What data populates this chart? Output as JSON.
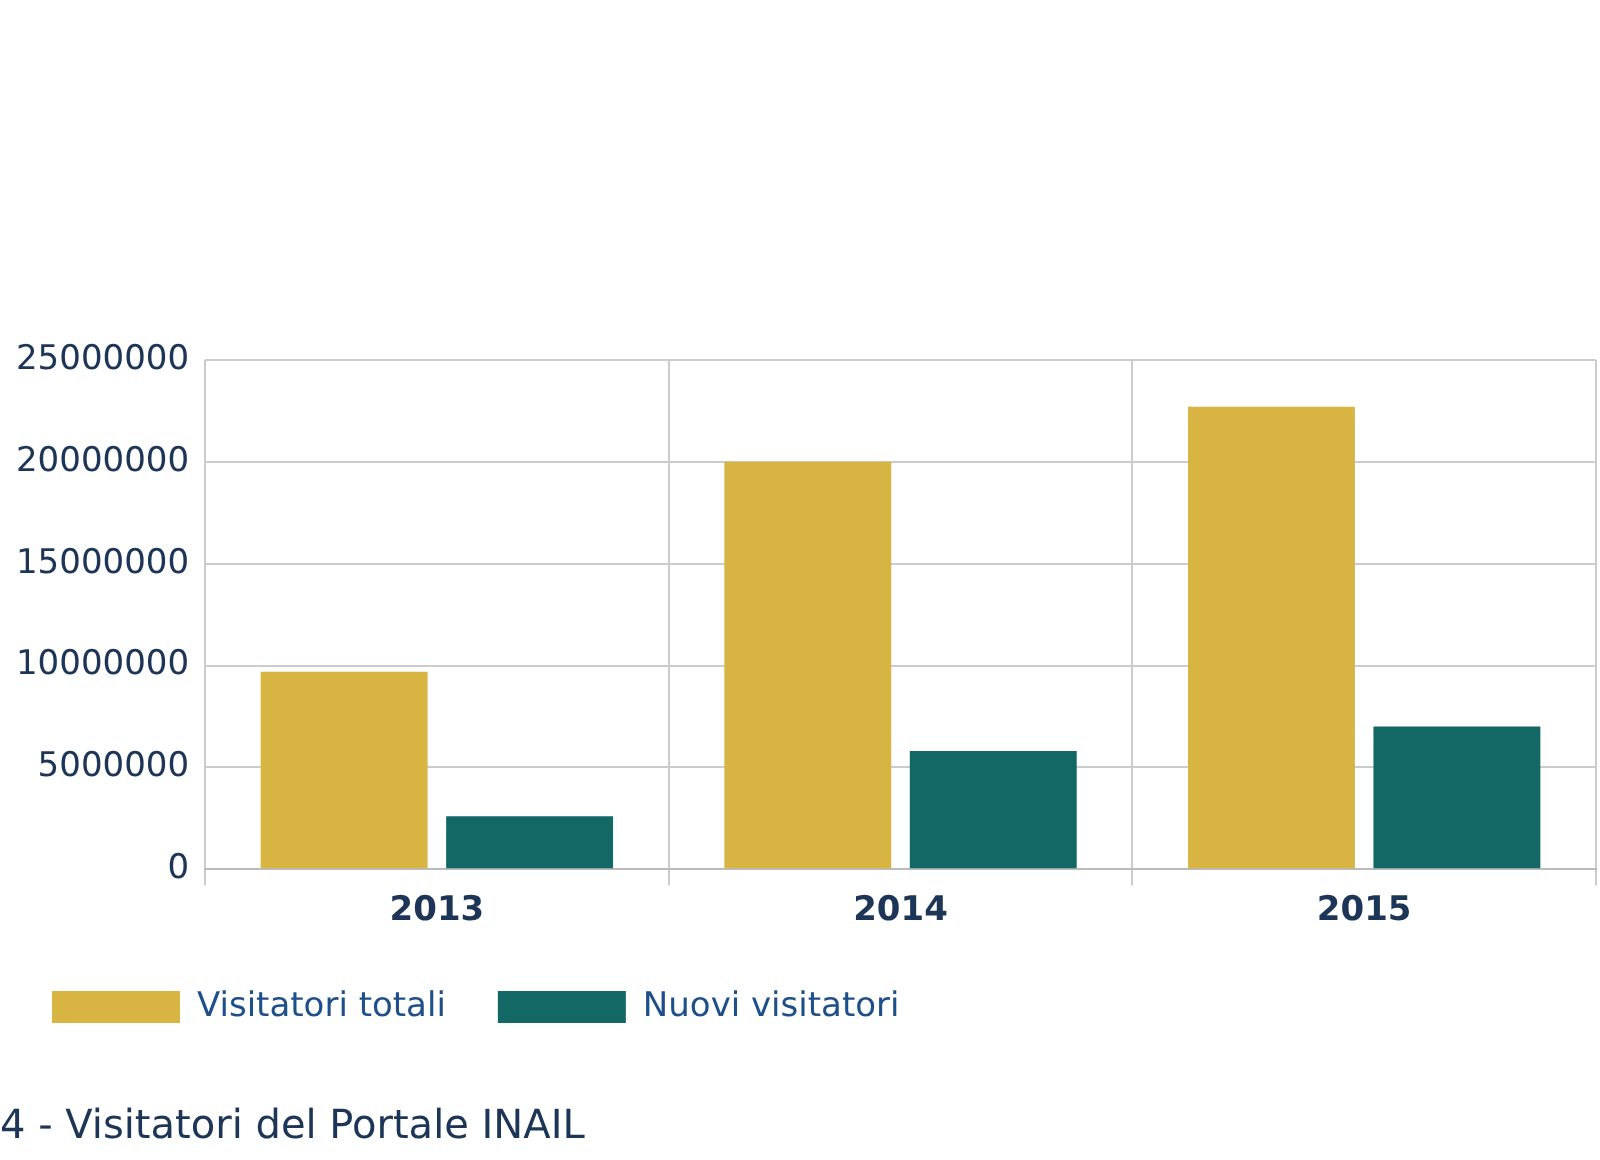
{
  "chart_data": {
    "type": "bar",
    "title": "4 - Visitatori del Portale INAIL",
    "categories": [
      "2013",
      "2014",
      "2015"
    ],
    "series": [
      {
        "name": "Visitatori totali",
        "color": "#d8b443",
        "values": [
          9700000,
          20000000,
          22700000
        ]
      },
      {
        "name": "Nuovi visitatori",
        "color": "#136866",
        "values": [
          2600000,
          5800000,
          7000000
        ]
      }
    ],
    "ylim": [
      0,
      25000000
    ],
    "yticks": [
      0,
      5000000,
      10000000,
      15000000,
      20000000,
      25000000
    ],
    "grid": true,
    "legend": "bottom left"
  }
}
